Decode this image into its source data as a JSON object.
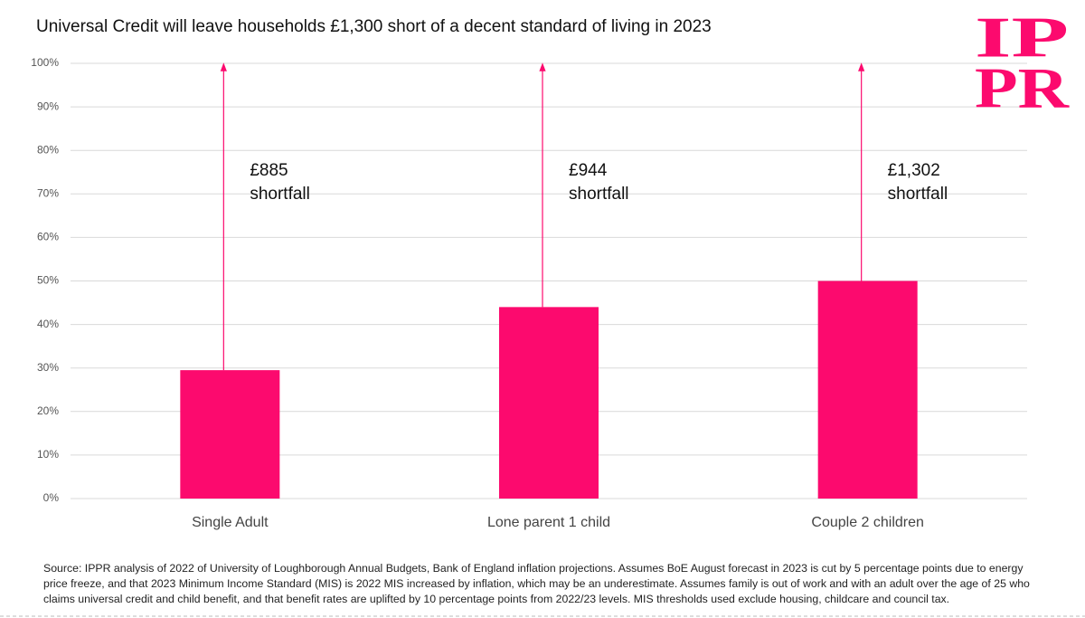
{
  "chart_data": {
    "type": "bar",
    "title": "Universal Credit will leave households £1,300 short of a decent standard of living in 2023",
    "categories": [
      "Single Adult",
      "Lone parent 1 child",
      "Couple 2 children"
    ],
    "values": [
      29.5,
      44,
      50
    ],
    "color": "#fc0a6e",
    "ylim": [
      0,
      100
    ],
    "yticks": [
      {
        "value": 0,
        "label": "0%"
      },
      {
        "value": 10,
        "label": "10%"
      },
      {
        "value": 20,
        "label": "20%"
      },
      {
        "value": 30,
        "label": "30%"
      },
      {
        "value": 40,
        "label": "40%"
      },
      {
        "value": 50,
        "label": "50%"
      },
      {
        "value": 60,
        "label": "60%"
      },
      {
        "value": 70,
        "label": "70%"
      },
      {
        "value": 80,
        "label": "80%"
      },
      {
        "value": 90,
        "label": "90%"
      },
      {
        "value": 100,
        "label": "100%"
      }
    ],
    "grid": true,
    "annotations": [
      [
        "£885",
        "shortfall"
      ],
      [
        "£944",
        "shortfall"
      ],
      [
        "£1,302",
        "shortfall"
      ]
    ],
    "logo": [
      "IP",
      "PR"
    ],
    "source": "Source: IPPR analysis of 2022 of University of Loughborough Annual Budgets, Bank of England inflation projections. Assumes BoE August forecast in 2023 is cut by 5 percentage points due to energy price freeze, and that 2023 Minimum Income Standard (MIS) is 2022 MIS increased by inflation, which may be an underestimate.  Assumes family is out of work and with an adult over the age of 25 who claims universal credit and child benefit, and that benefit rates are uplifted by 10 percentage points from 2022/23 levels. MIS thresholds used exclude housing, childcare and council tax."
  }
}
